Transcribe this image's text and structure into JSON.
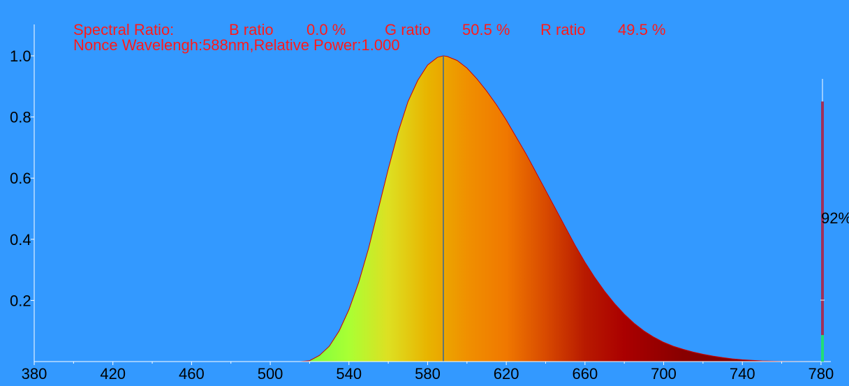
{
  "header": {
    "spectral_label": "Spectral Ratio:",
    "b_label": "B ratio",
    "b_value": "0.0 %",
    "g_label": "G ratio",
    "g_value": "50.5 %",
    "r_label": "R ratio",
    "r_value": "49.5 %",
    "nonce_line": "Nonce Wavelengh:588nm,Relative Power:1.000"
  },
  "colors": {
    "background": "#3399ff",
    "header_text": "#ff1a1a",
    "curve_outline": "#cc0000",
    "marker_line": "#336699"
  },
  "gauge": {
    "label": "92%",
    "value": 0.92
  },
  "chart_data": {
    "type": "area",
    "title": "",
    "xlabel": "",
    "ylabel": "",
    "xlim": [
      380,
      785
    ],
    "ylim": [
      0,
      1.0
    ],
    "x_ticks": [
      380,
      420,
      460,
      500,
      540,
      580,
      620,
      660,
      700,
      740,
      780
    ],
    "y_ticks": [
      0.2,
      0.4,
      0.6,
      0.8,
      1.0
    ],
    "y_tick_labels": [
      "0.2",
      "0.4",
      "0.6",
      "0.8",
      "1.0"
    ],
    "grid": false,
    "marker_wavelength": 588,
    "series": [
      {
        "x": [
          380,
          500,
          515,
          520,
          525,
          530,
          535,
          540,
          545,
          550,
          555,
          560,
          565,
          570,
          575,
          580,
          585,
          588,
          590,
          595,
          600,
          605,
          610,
          615,
          620,
          625,
          630,
          635,
          640,
          645,
          650,
          655,
          660,
          665,
          670,
          675,
          680,
          685,
          690,
          695,
          700,
          705,
          710,
          715,
          720,
          725,
          730,
          735,
          740,
          745,
          750,
          760,
          780
        ],
        "y": [
          0,
          0,
          0,
          0.003,
          0.02,
          0.05,
          0.1,
          0.17,
          0.26,
          0.37,
          0.5,
          0.63,
          0.75,
          0.85,
          0.92,
          0.97,
          0.995,
          1.0,
          0.998,
          0.985,
          0.96,
          0.925,
          0.885,
          0.84,
          0.79,
          0.735,
          0.68,
          0.62,
          0.56,
          0.5,
          0.44,
          0.38,
          0.325,
          0.275,
          0.23,
          0.19,
          0.155,
          0.125,
          0.1,
          0.08,
          0.063,
          0.05,
          0.04,
          0.031,
          0.024,
          0.018,
          0.013,
          0.009,
          0.006,
          0.004,
          0.002,
          0.0005,
          0
        ]
      }
    ]
  }
}
